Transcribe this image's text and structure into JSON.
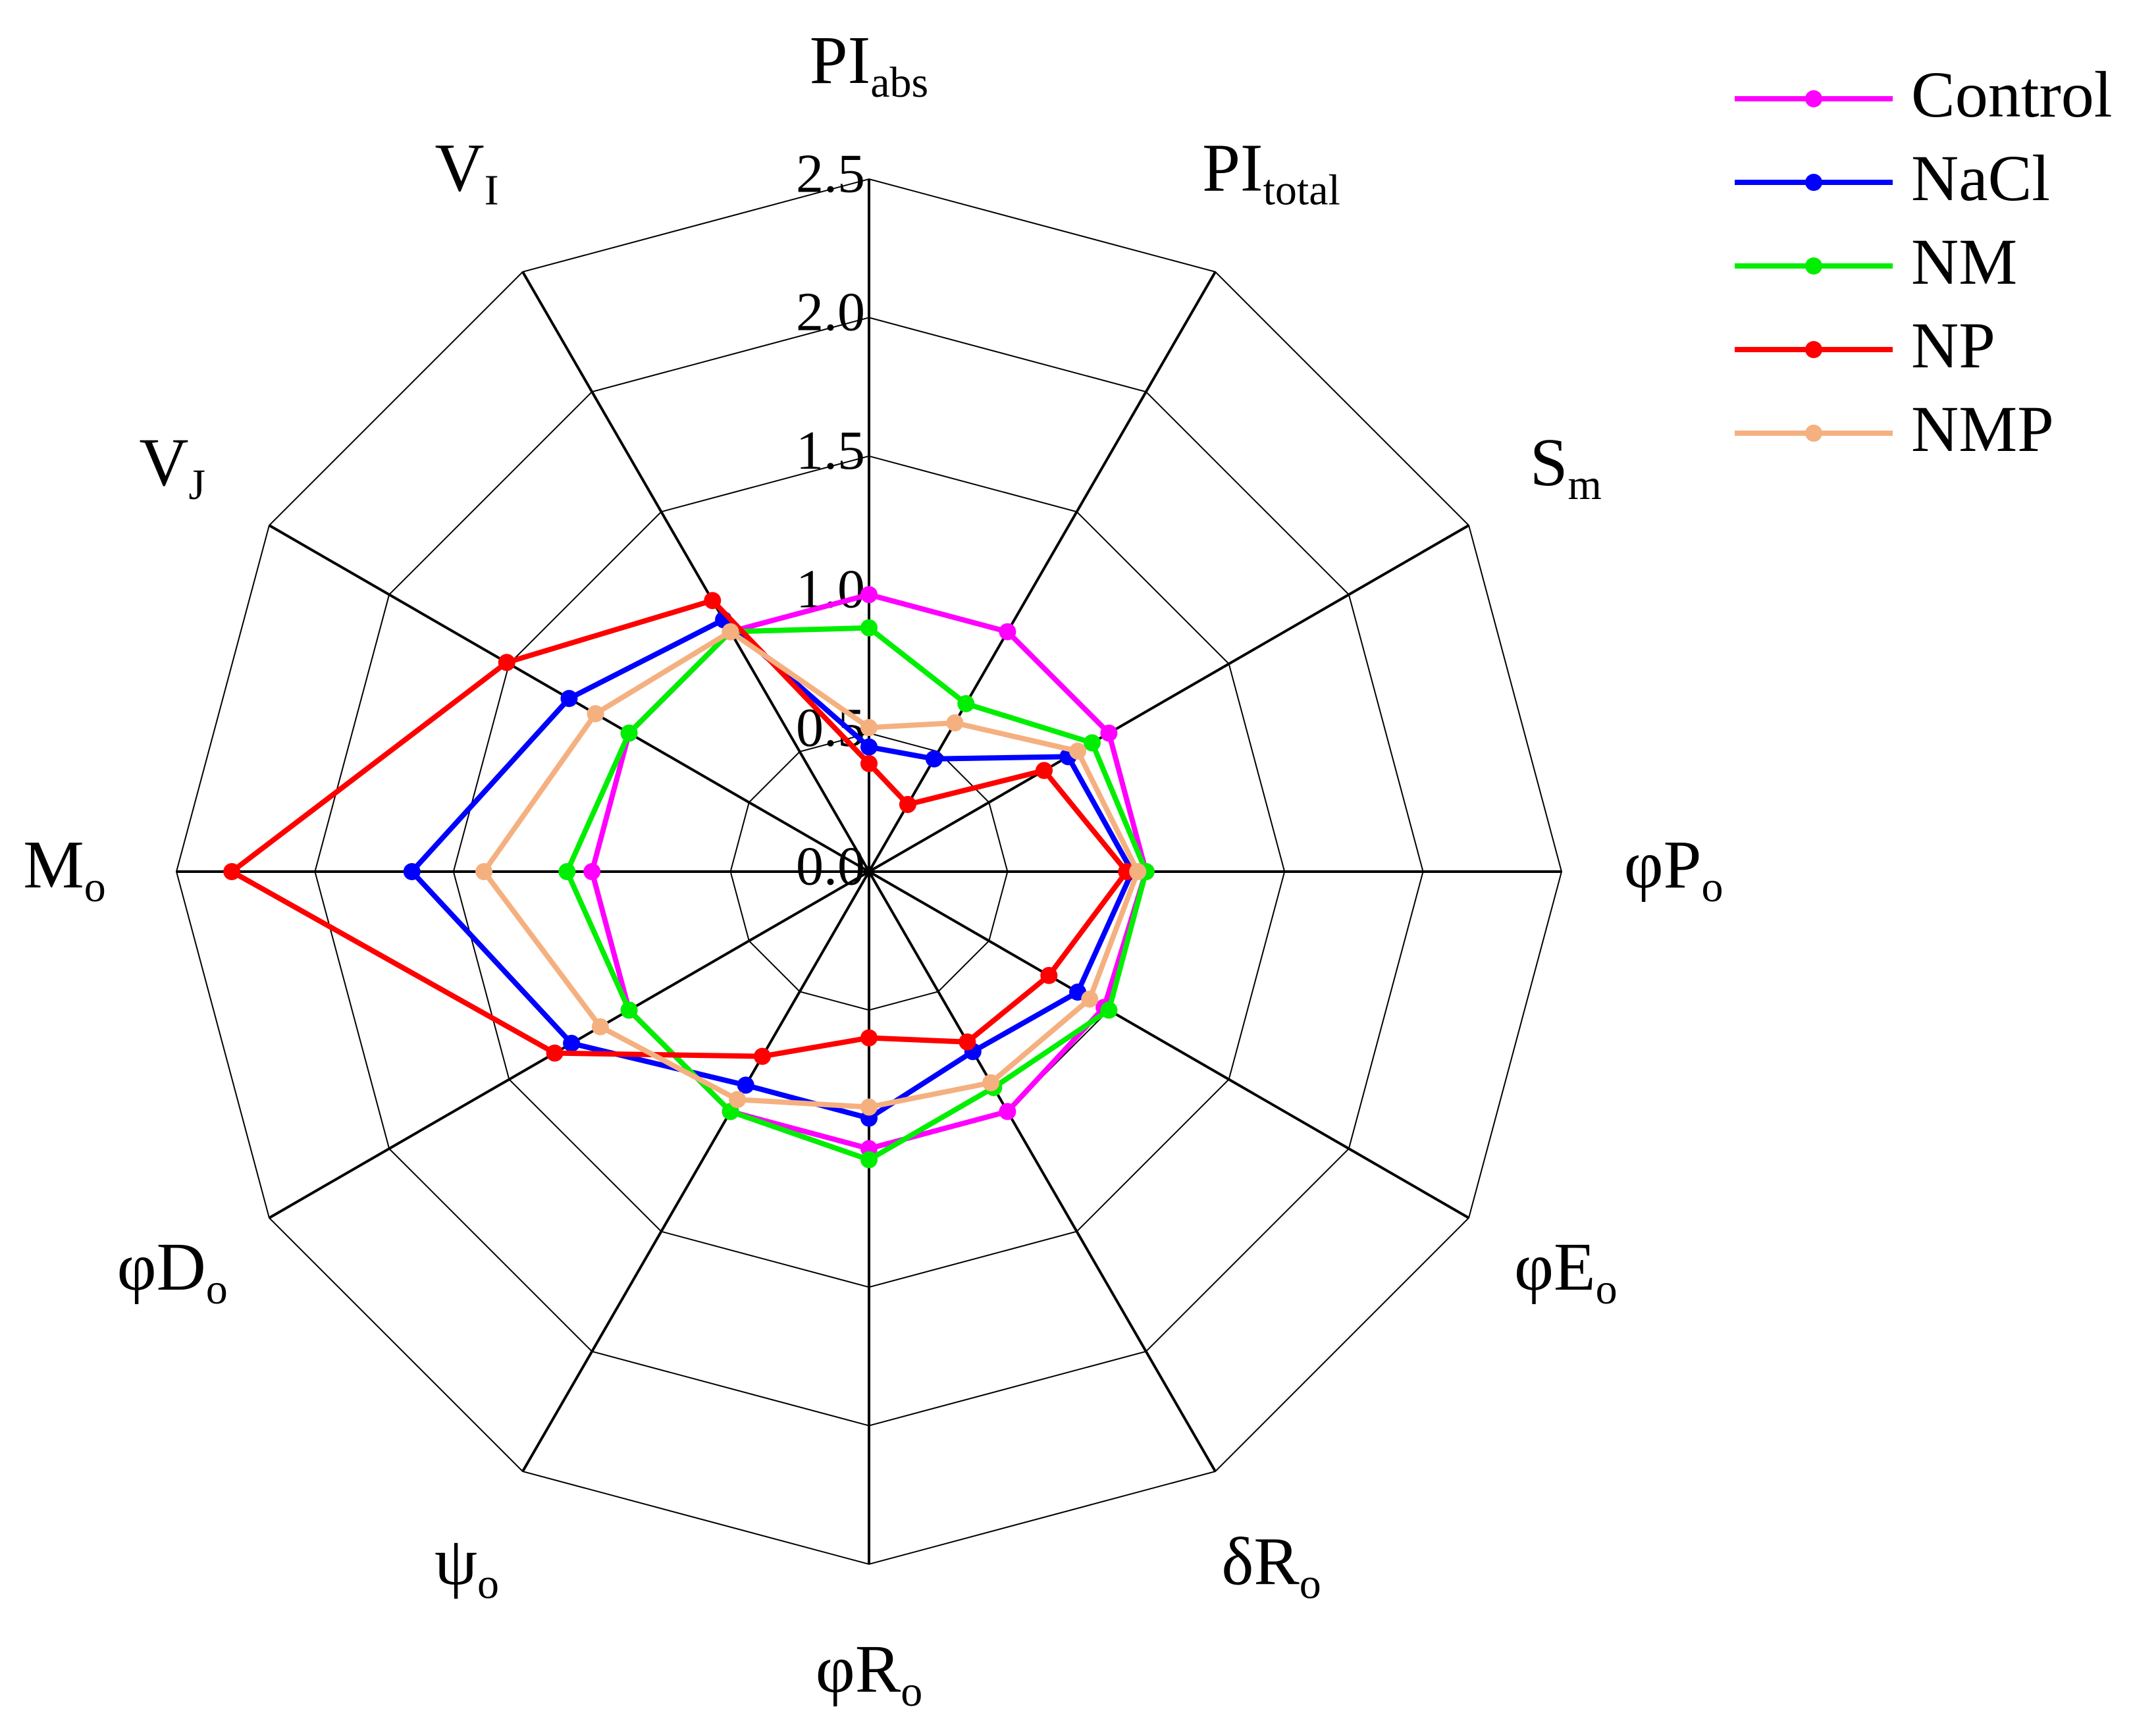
{
  "chart_data": {
    "type": "radar",
    "categories": [
      {
        "text": "PI",
        "sub": "abs"
      },
      {
        "text": "PI",
        "sub": "total"
      },
      {
        "text": "S",
        "sub": "m"
      },
      {
        "text": "φP",
        "sub": "o"
      },
      {
        "text": "φE",
        "sub": "o"
      },
      {
        "text": "δR",
        "sub": "o"
      },
      {
        "text": "φR",
        "sub": "o"
      },
      {
        "text": "ψ",
        "sub": "o"
      },
      {
        "text": "φD",
        "sub": "o"
      },
      {
        "text": "M",
        "sub": "o"
      },
      {
        "text": "V",
        "sub": "J"
      },
      {
        "text": "V",
        "sub": "I"
      }
    ],
    "rlim": [
      0,
      2.5
    ],
    "rticks": [
      {
        "value": 0,
        "label": "0.0"
      },
      {
        "value": 0.5,
        "label": "0.5"
      },
      {
        "value": 1,
        "label": "1.0"
      },
      {
        "value": 1.5,
        "label": "1.5"
      },
      {
        "value": 2,
        "label": "2.0"
      },
      {
        "value": 2.5,
        "label": "2.5"
      }
    ],
    "legend": "top-right",
    "series": [
      {
        "name": "Control",
        "color": "#ff00ff",
        "values": [
          1.0,
          1.0,
          1.0,
          1.0,
          0.98,
          1.0,
          1.0,
          1.0,
          1.0,
          1.0,
          1.0,
          1.0
        ]
      },
      {
        "name": "NaCl",
        "color": "#0000ff",
        "values": [
          0.45,
          0.47,
          0.83,
          0.95,
          0.87,
          0.75,
          0.89,
          0.89,
          1.24,
          1.65,
          1.25,
          1.05
        ]
      },
      {
        "name": "NM",
        "color": "#00ee00",
        "values": [
          0.88,
          0.7,
          0.93,
          1.0,
          1.0,
          0.9,
          1.04,
          1.0,
          1.0,
          1.09,
          1.0,
          1.0
        ]
      },
      {
        "name": "NP",
        "color": "#ff0000",
        "values": [
          0.39,
          0.28,
          0.73,
          0.93,
          0.75,
          0.71,
          0.6,
          0.77,
          1.31,
          2.3,
          1.51,
          1.13
        ]
      },
      {
        "name": "NMP",
        "color": "#f5b080",
        "values": [
          0.52,
          0.62,
          0.87,
          0.97,
          0.92,
          0.88,
          0.85,
          0.95,
          1.12,
          1.39,
          1.14,
          1.0
        ]
      }
    ]
  }
}
